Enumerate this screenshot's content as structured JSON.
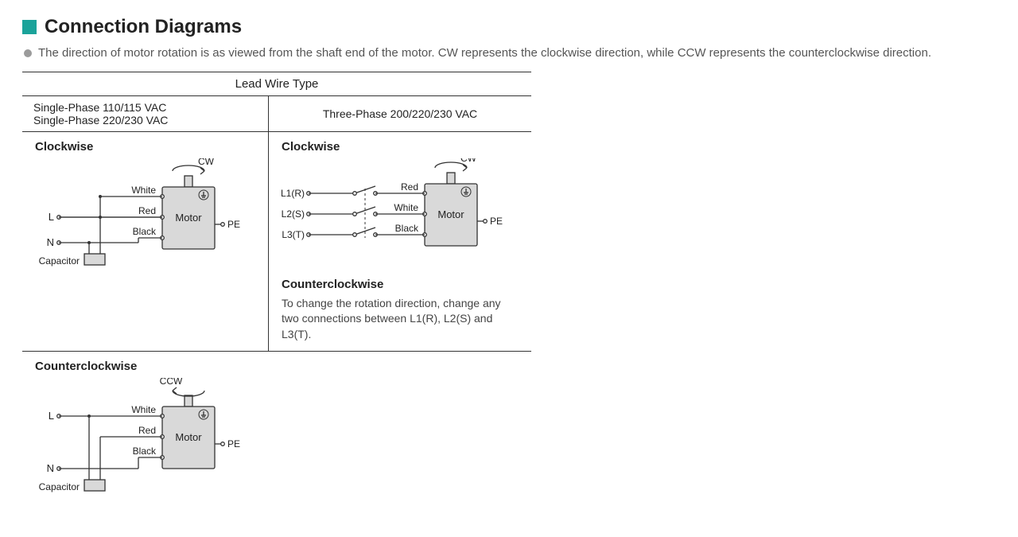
{
  "title": "Connection Diagrams",
  "intro": "The direction of motor rotation is as viewed from the shaft end of the motor. CW represents the clockwise direction, while CCW represents the counterclockwise direction.",
  "table": {
    "headerSpan": "Lead Wire Type",
    "leftHeader1": "Single-Phase 110/115 VAC",
    "leftHeader2": "Single-Phase 220/230 VAC",
    "rightHeader": "Three-Phase 200/220/230 VAC"
  },
  "labels": {
    "clockwise": "Clockwise",
    "counterclockwise": "Counterclockwise",
    "cw": "CW",
    "ccw": "CCW",
    "motor": "Motor",
    "pe": "PE",
    "L": "L",
    "N": "N",
    "capacitor": "Capacitor",
    "white": "White",
    "red": "Red",
    "black": "Black",
    "l1": "L1(R)",
    "l2": "L2(S)",
    "l3": "L3(T)"
  },
  "ccwNote": "To change the rotation direction, change any two connections between L1(R), L2(S) and L3(T).",
  "colors": {
    "accent": "#1aa39a",
    "line": "#333333",
    "motorFill": "#d9d9d9",
    "capFill": "#d9d9d9",
    "text": "#222222",
    "grey": "#777777"
  },
  "diagram": {
    "motor": {
      "w": 66,
      "h": 78,
      "rx": 2
    },
    "shaft": {
      "w": 10,
      "h": 14
    },
    "stroke": 1.3,
    "termR": 2.3
  }
}
